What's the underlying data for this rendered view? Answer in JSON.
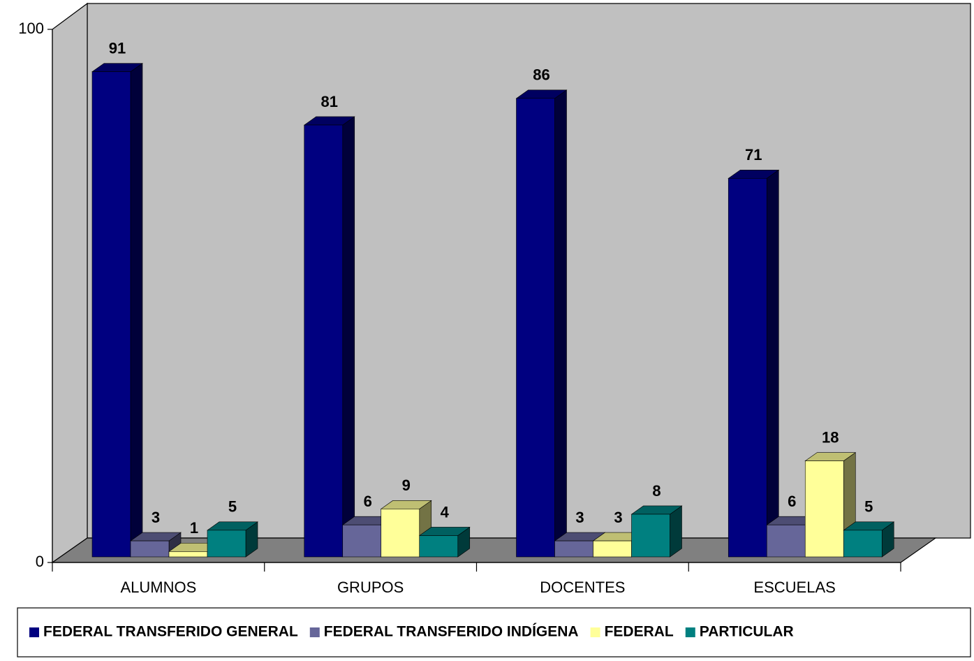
{
  "chart_data": {
    "type": "bar3d",
    "categories": [
      "ALUMNOS",
      "GRUPOS",
      "DOCENTES",
      "ESCUELAS"
    ],
    "series": [
      {
        "name": "FEDERAL TRANSFERIDO GENERAL",
        "color": "#000080",
        "values": [
          91,
          81,
          86,
          71
        ]
      },
      {
        "name": "FEDERAL TRANSFERIDO INDÍGENA",
        "color": "#666699",
        "values": [
          3,
          6,
          3,
          6
        ]
      },
      {
        "name": "FEDERAL",
        "color": "#FFFF99",
        "values": [
          1,
          9,
          3,
          18
        ]
      },
      {
        "name": "PARTICULAR",
        "color": "#008080",
        "values": [
          5,
          4,
          8,
          5
        ]
      }
    ],
    "ylim": [
      0,
      100
    ],
    "yticks": [
      0,
      100
    ],
    "legend": "bottom"
  }
}
